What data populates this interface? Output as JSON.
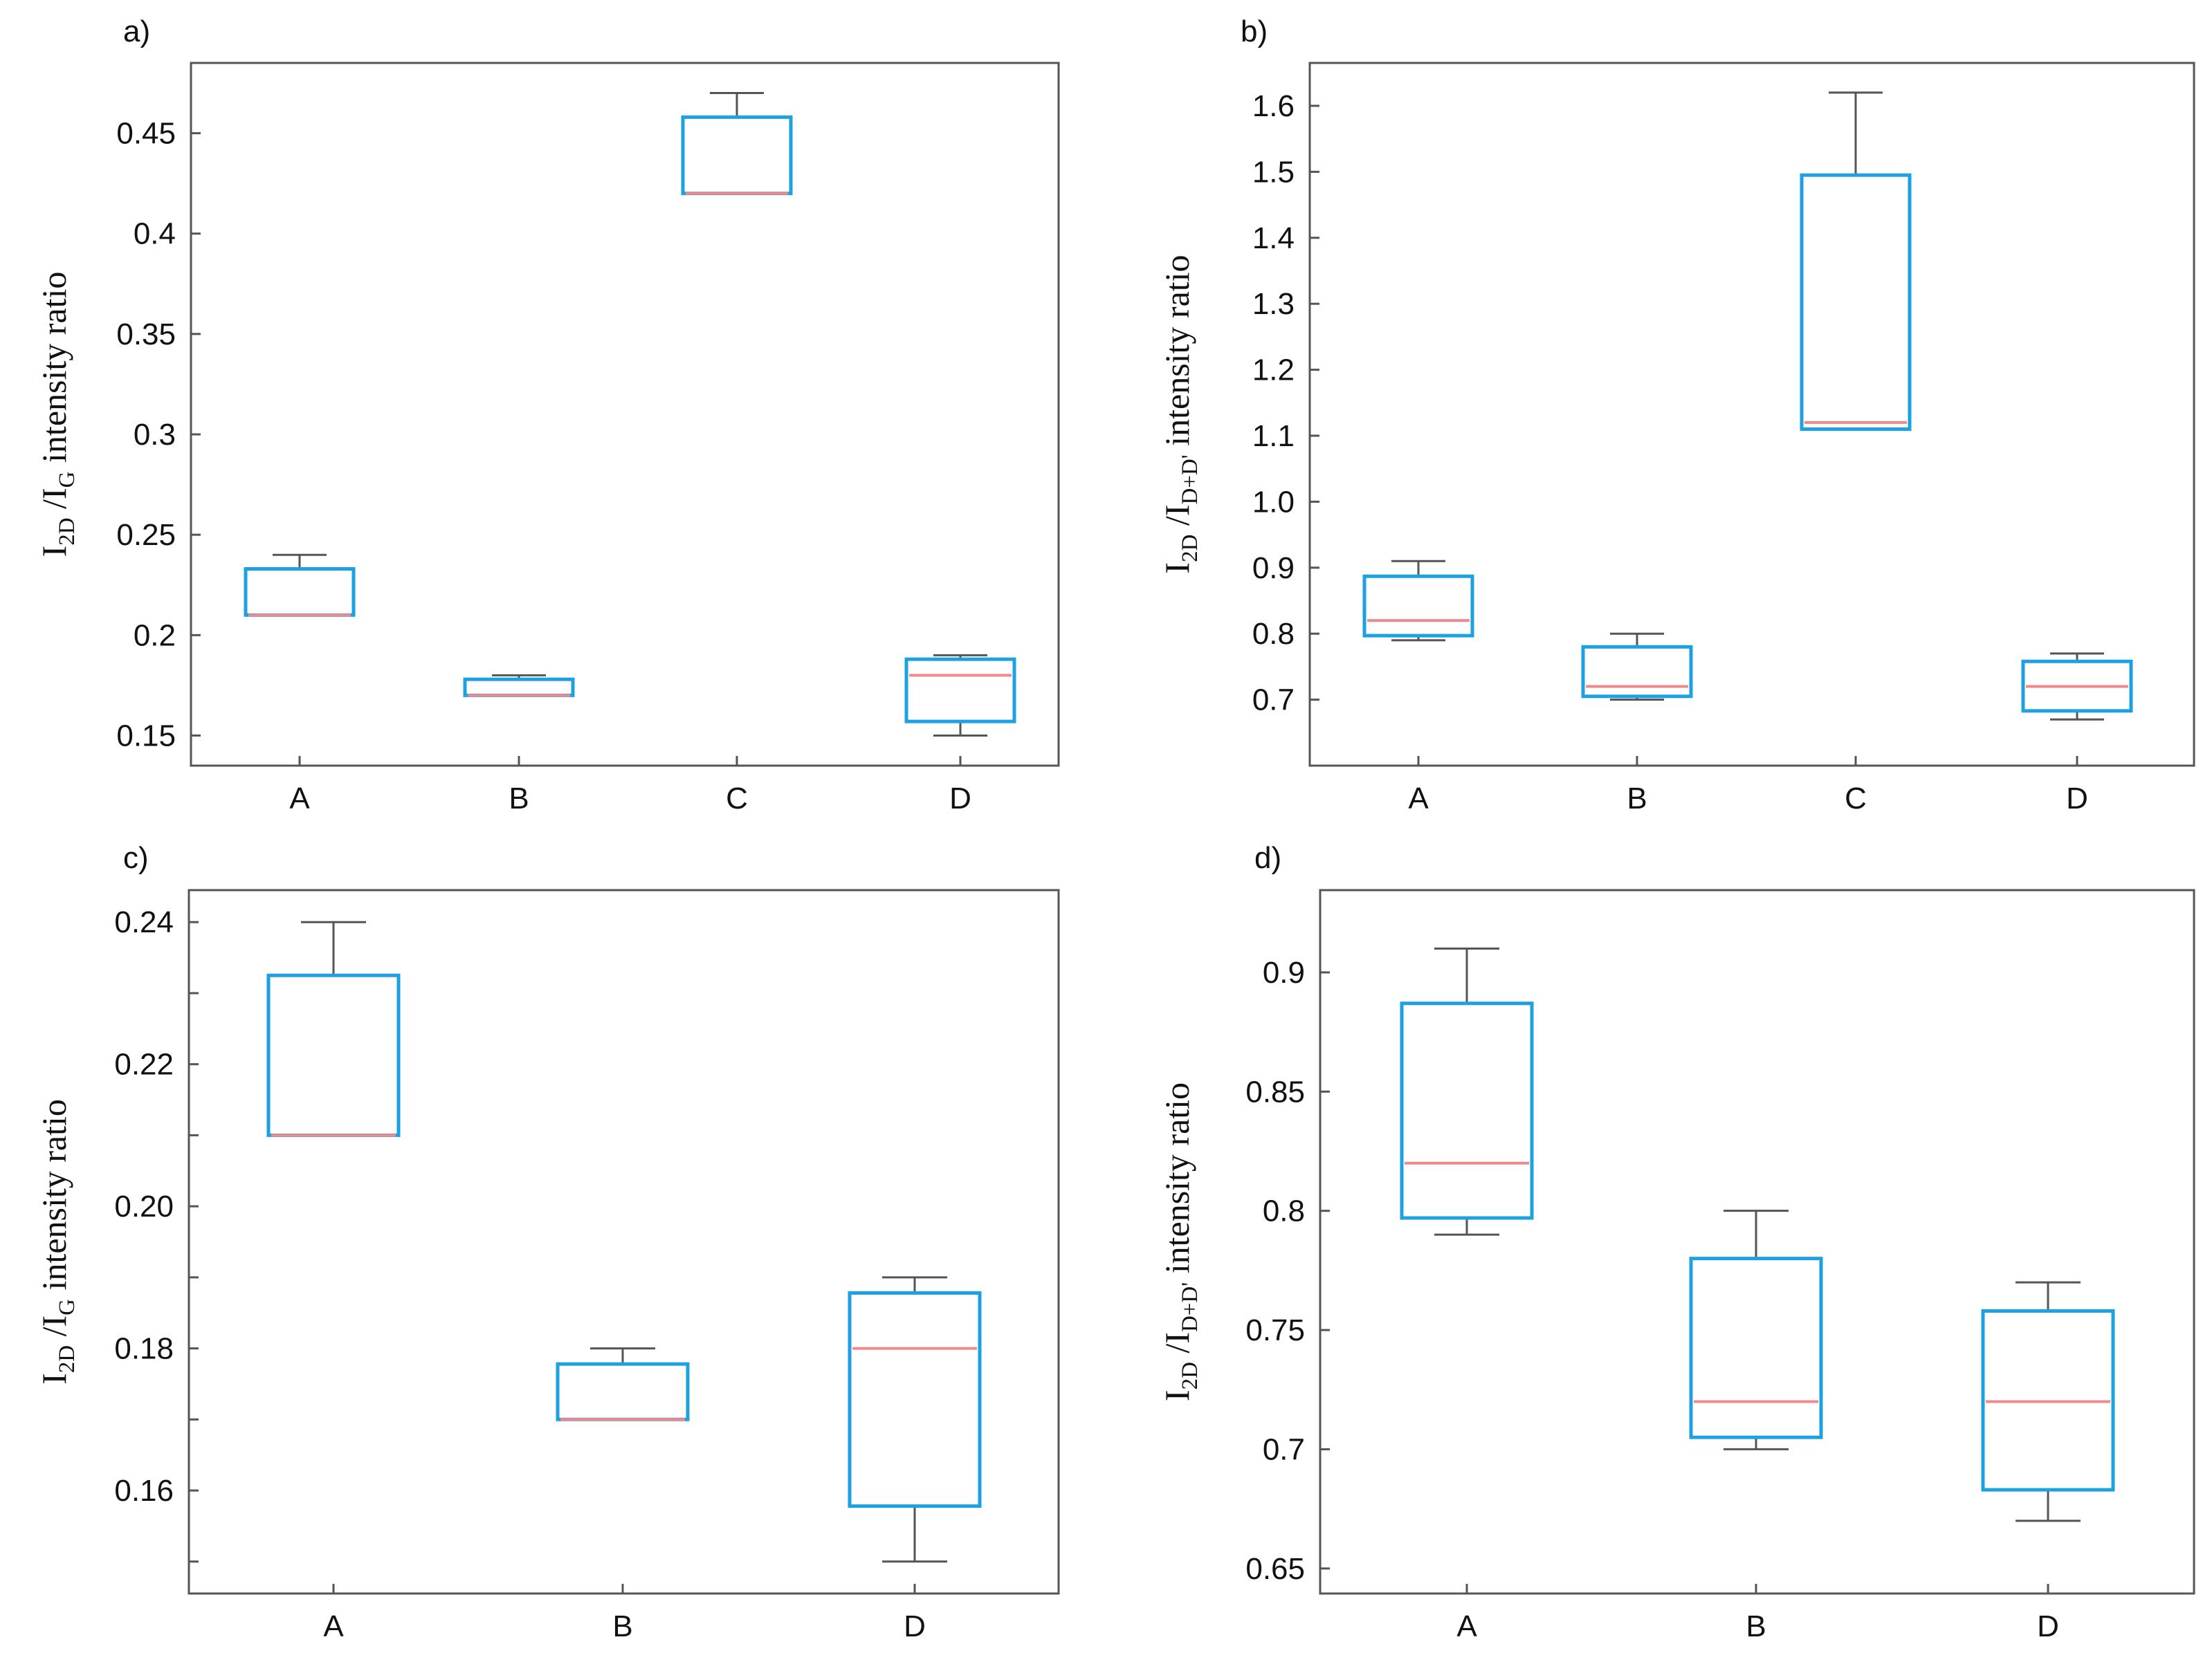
{
  "colors": {
    "box": "#1ea1e0",
    "median": "#f08a8a",
    "whisker": "#555555",
    "axis": "#555555"
  },
  "chart_data": [
    {
      "id": "a",
      "type": "box",
      "panel_label": "a)",
      "ylabel": {
        "main": "I",
        "sub1": "2D",
        "mid": " /I",
        "sub2": "G",
        "rest": " intensity ratio"
      },
      "categories": [
        "A",
        "B",
        "C",
        "D"
      ],
      "ylim": [
        0.135,
        0.485
      ],
      "yticks": [
        0.15,
        0.2,
        0.25,
        0.3,
        0.35,
        0.4,
        0.45
      ],
      "ytick_labels": [
        "0.15",
        "0.2",
        "0.25",
        "0.3",
        "0.35",
        "0.4",
        "0.45"
      ],
      "boxes": [
        {
          "category": "A",
          "whisker_low": 0.21,
          "q1": 0.21,
          "median": 0.21,
          "q3": 0.233,
          "whisker_high": 0.24
        },
        {
          "category": "B",
          "whisker_low": 0.17,
          "q1": 0.17,
          "median": 0.17,
          "q3": 0.178,
          "whisker_high": 0.18
        },
        {
          "category": "C",
          "whisker_low": 0.42,
          "q1": 0.42,
          "median": 0.42,
          "q3": 0.458,
          "whisker_high": 0.47
        },
        {
          "category": "D",
          "whisker_low": 0.15,
          "q1": 0.157,
          "median": 0.18,
          "q3": 0.188,
          "whisker_high": 0.19
        }
      ]
    },
    {
      "id": "b",
      "type": "box",
      "panel_label": "b)",
      "ylabel": {
        "main": "I",
        "sub1": "2D",
        "mid": " /I",
        "sub2": "D+D'",
        "rest": " intensity ratio"
      },
      "categories": [
        "A",
        "B",
        "C",
        "D"
      ],
      "ylim": [
        0.6,
        1.665
      ],
      "yticks": [
        0.7,
        0.8,
        0.9,
        1.0,
        1.1,
        1.2,
        1.3,
        1.4,
        1.5,
        1.6
      ],
      "ytick_labels": [
        "0.7",
        "0.8",
        "0.9",
        "1.0",
        "1.1",
        "1.2",
        "1.3",
        "1.4",
        "1.5",
        "1.6"
      ],
      "boxes": [
        {
          "category": "A",
          "whisker_low": 0.79,
          "q1": 0.797,
          "median": 0.82,
          "q3": 0.887,
          "whisker_high": 0.91
        },
        {
          "category": "B",
          "whisker_low": 0.7,
          "q1": 0.705,
          "median": 0.72,
          "q3": 0.78,
          "whisker_high": 0.8
        },
        {
          "category": "C",
          "whisker_low": 1.11,
          "q1": 1.11,
          "median": 1.12,
          "q3": 1.495,
          "whisker_high": 1.62
        },
        {
          "category": "D",
          "whisker_low": 0.67,
          "q1": 0.683,
          "median": 0.72,
          "q3": 0.758,
          "whisker_high": 0.77
        }
      ]
    },
    {
      "id": "c",
      "type": "box",
      "panel_label": "c)",
      "ylabel": {
        "main": "I",
        "sub1": "2D",
        "mid": " /I",
        "sub2": "G",
        "rest": " intensity ratio"
      },
      "categories": [
        "A",
        "B",
        "D"
      ],
      "ylim": [
        0.1455,
        0.2445
      ],
      "yticks": [
        0.15,
        0.16,
        0.17,
        0.18,
        0.19,
        0.2,
        0.21,
        0.22,
        0.23,
        0.24
      ],
      "ytick_labels": [
        "",
        "0.16",
        "",
        "0.18",
        "",
        "0.20",
        "",
        "0.22",
        "",
        "0.24"
      ],
      "boxes": [
        {
          "category": "A",
          "whisker_low": 0.21,
          "q1": 0.21,
          "median": 0.21,
          "q3": 0.2325,
          "whisker_high": 0.24
        },
        {
          "category": "B",
          "whisker_low": 0.17,
          "q1": 0.17,
          "median": 0.17,
          "q3": 0.1778,
          "whisker_high": 0.18
        },
        {
          "category": "D",
          "whisker_low": 0.15,
          "q1": 0.1578,
          "median": 0.18,
          "q3": 0.1878,
          "whisker_high": 0.19
        }
      ]
    },
    {
      "id": "d",
      "type": "box",
      "panel_label": "d)",
      "ylabel": {
        "main": "I",
        "sub1": "2D",
        "mid": " /I",
        "sub2": "D+D'",
        "rest": " intensity ratio"
      },
      "categories": [
        "A",
        "B",
        "D"
      ],
      "ylim": [
        0.6395,
        0.9345
      ],
      "yticks": [
        0.65,
        0.7,
        0.75,
        0.8,
        0.85,
        0.9
      ],
      "ytick_labels": [
        "0.65",
        "0.7",
        "0.75",
        "0.8",
        "0.85",
        "0.9"
      ],
      "boxes": [
        {
          "category": "A",
          "whisker_low": 0.79,
          "q1": 0.797,
          "median": 0.82,
          "q3": 0.887,
          "whisker_high": 0.91
        },
        {
          "category": "B",
          "whisker_low": 0.7,
          "q1": 0.705,
          "median": 0.72,
          "q3": 0.78,
          "whisker_high": 0.8
        },
        {
          "category": "D",
          "whisker_low": 0.67,
          "q1": 0.683,
          "median": 0.72,
          "q3": 0.758,
          "whisker_high": 0.77
        }
      ]
    }
  ]
}
